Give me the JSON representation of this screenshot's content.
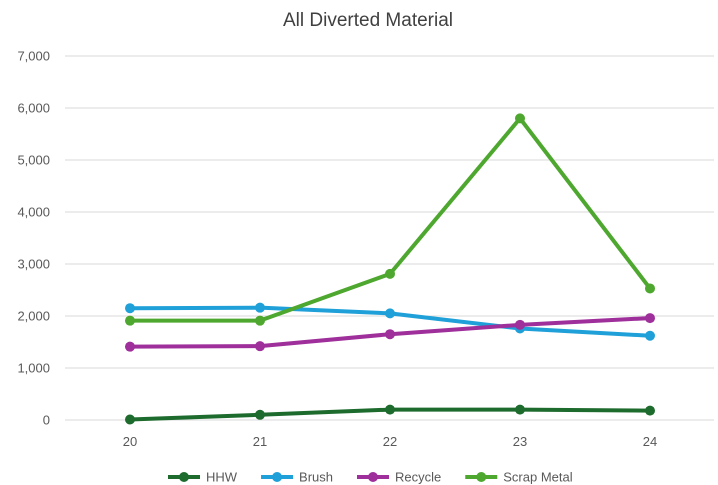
{
  "chart_data": {
    "type": "line",
    "title": "All Diverted Material",
    "xlabel": "",
    "ylabel": "",
    "categories": [
      "20",
      "21",
      "22",
      "23",
      "24"
    ],
    "ylim": [
      0,
      7000
    ],
    "yticks": [
      0,
      1000,
      2000,
      3000,
      4000,
      5000,
      6000,
      7000
    ],
    "ytick_labels": [
      "0",
      "1,000",
      "2,000",
      "3,000",
      "4,000",
      "5,000",
      "6,000",
      "7,000"
    ],
    "grid": true,
    "legend_position": "bottom",
    "series": [
      {
        "name": "HHW",
        "color": "#1e6b2e",
        "values": [
          10,
          100,
          200,
          200,
          180
        ]
      },
      {
        "name": "Brush",
        "color": "#1fa0d8",
        "values": [
          2150,
          2160,
          2050,
          1760,
          1620
        ]
      },
      {
        "name": "Recycle",
        "color": "#9e2f9b",
        "values": [
          1410,
          1420,
          1650,
          1830,
          1960
        ]
      },
      {
        "name": "Scrap Metal",
        "color": "#4ea72e",
        "values": [
          1910,
          1910,
          2810,
          5800,
          2530
        ]
      }
    ]
  }
}
